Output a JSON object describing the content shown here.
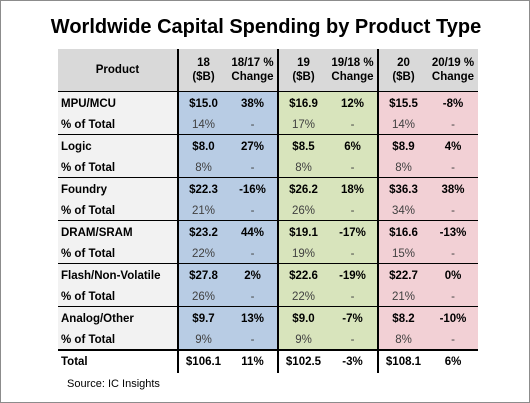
{
  "title": "Worldwide Capital Spending by Product Type",
  "source": "Source: IC Insights",
  "header": {
    "product": "Product",
    "y18": [
      "18",
      "($B)"
    ],
    "c18": [
      "18/17 %",
      "Change"
    ],
    "y19": [
      "19",
      "($B)"
    ],
    "c19": [
      "19/18 %",
      "Change"
    ],
    "y20": [
      "20",
      "($B)"
    ],
    "c20": [
      "20/19 %",
      "Change"
    ]
  },
  "rows": [
    {
      "label": "MPU/MCU",
      "type": "product",
      "values": [
        "$15.0",
        "38%",
        "$16.9",
        "12%",
        "$15.5",
        "-8%"
      ]
    },
    {
      "label": "% of Total",
      "type": "pct",
      "values": [
        "14%",
        "-",
        "17%",
        "-",
        "14%",
        "-"
      ]
    },
    {
      "label": "Logic",
      "type": "product",
      "values": [
        "$8.0",
        "27%",
        "$8.5",
        "6%",
        "$8.9",
        "4%"
      ]
    },
    {
      "label": "% of Total",
      "type": "pct",
      "values": [
        "8%",
        "-",
        "8%",
        "-",
        "8%",
        "-"
      ]
    },
    {
      "label": "Foundry",
      "type": "product",
      "values": [
        "$22.3",
        "-16%",
        "$26.2",
        "18%",
        "$36.3",
        "38%"
      ]
    },
    {
      "label": "% of Total",
      "type": "pct",
      "values": [
        "21%",
        "-",
        "26%",
        "-",
        "34%",
        "-"
      ]
    },
    {
      "label": "DRAM/SRAM",
      "type": "product",
      "values": [
        "$23.2",
        "44%",
        "$19.1",
        "-17%",
        "$16.6",
        "-13%"
      ]
    },
    {
      "label": "% of Total",
      "type": "pct",
      "values": [
        "22%",
        "-",
        "19%",
        "-",
        "15%",
        "-"
      ]
    },
    {
      "label": "Flash/Non-Volatile",
      "type": "product",
      "values": [
        "$27.8",
        "2%",
        "$22.6",
        "-19%",
        "$22.7",
        "0%"
      ]
    },
    {
      "label": "% of Total",
      "type": "pct",
      "values": [
        "26%",
        "-",
        "22%",
        "-",
        "21%",
        "-"
      ]
    },
    {
      "label": "Analog/Other",
      "type": "product",
      "values": [
        "$9.7",
        "13%",
        "$9.0",
        "-7%",
        "$8.2",
        "-10%"
      ]
    },
    {
      "label": "% of Total",
      "type": "pct",
      "values": [
        "9%",
        "-",
        "9%",
        "-",
        "8%",
        "-"
      ]
    },
    {
      "label": "Total",
      "type": "total",
      "values": [
        "$106.1",
        "11%",
        "$102.5",
        "-3%",
        "$108.1",
        "6%"
      ]
    }
  ],
  "colors": {
    "header_gray": "#d9d9d9",
    "label_gray": "#f2f2f2",
    "year18_blue": "#b8cce4",
    "year19_green": "#d8e4bc",
    "year20_pink": "#f2d0d5"
  },
  "chart_data": {
    "type": "table",
    "title": "Worldwide Capital Spending by Product Type",
    "columns": [
      "Product",
      "18 ($B)",
      "18/17 % Change",
      "19 ($B)",
      "19/18 % Change",
      "20 ($B)",
      "20/19 % Change"
    ],
    "categories": [
      "MPU/MCU",
      "Logic",
      "Foundry",
      "DRAM/SRAM",
      "Flash/Non-Volatile",
      "Analog/Other",
      "Total"
    ],
    "series": [
      {
        "name": "18 ($B)",
        "values": [
          15.0,
          8.0,
          22.3,
          23.2,
          27.8,
          9.7,
          106.1
        ]
      },
      {
        "name": "18/17 % Change",
        "values": [
          38,
          27,
          -16,
          44,
          2,
          13,
          11
        ]
      },
      {
        "name": "19 ($B)",
        "values": [
          16.9,
          8.5,
          26.2,
          19.1,
          22.6,
          9.0,
          102.5
        ]
      },
      {
        "name": "19/18 % Change",
        "values": [
          12,
          6,
          18,
          -17,
          -19,
          -7,
          -3
        ]
      },
      {
        "name": "20 ($B)",
        "values": [
          15.5,
          8.9,
          36.3,
          16.6,
          22.7,
          8.2,
          108.1
        ]
      },
      {
        "name": "20/19 % Change",
        "values": [
          -8,
          4,
          38,
          -13,
          0,
          -10,
          6
        ]
      }
    ],
    "share_of_total": {
      "18": [
        14,
        8,
        21,
        22,
        26,
        9
      ],
      "19": [
        17,
        8,
        26,
        19,
        22,
        9
      ],
      "20": [
        14,
        8,
        34,
        15,
        21,
        8
      ]
    }
  }
}
